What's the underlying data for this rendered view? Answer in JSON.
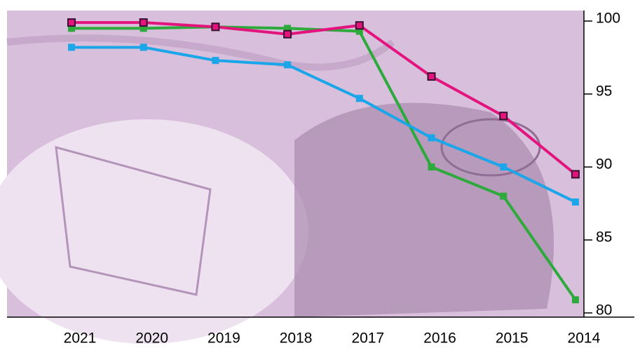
{
  "chart_data": {
    "type": "line",
    "categories": [
      "2021",
      "2020",
      "2019",
      "2018",
      "2017",
      "2016",
      "2015",
      "2014"
    ],
    "series": [
      {
        "color": "#2eaa3c",
        "values": [
          99.5,
          99.5,
          99.6,
          99.5,
          99.3,
          90.0,
          88.0,
          80.9
        ]
      },
      {
        "color": "#1aa6e8",
        "values": [
          98.2,
          98.2,
          97.3,
          97.0,
          94.7,
          92.0,
          90.0,
          87.6
        ]
      },
      {
        "color": "#e3147e",
        "values": [
          99.9,
          99.9,
          99.6,
          99.1,
          99.7,
          96.2,
          93.5,
          89.5
        ]
      }
    ],
    "ylim": [
      80,
      100
    ],
    "yticks": [
      80,
      85,
      90,
      95,
      100
    ]
  }
}
